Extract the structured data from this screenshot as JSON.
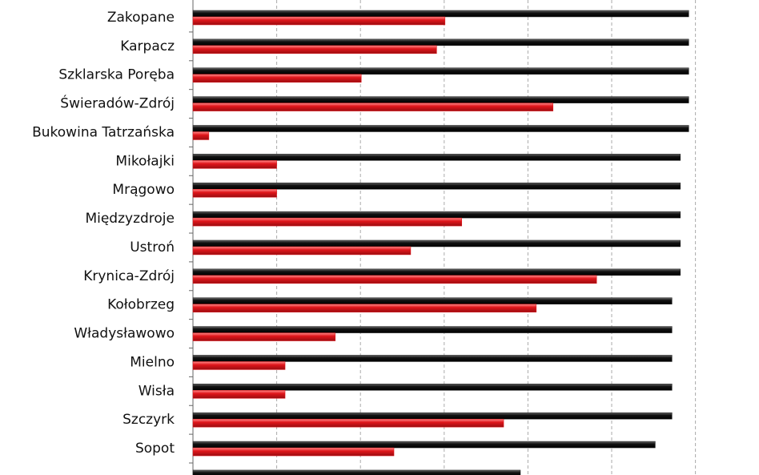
{
  "chart_data": {
    "type": "hbar",
    "categories": [
      "Zakopane",
      "Karpacz",
      "Szklarska Poręba",
      "Świeradów-Zdrój",
      "Bukowina Tatrzańska",
      "Mikołajki",
      "Mrągowo",
      "Międzyzdroje",
      "Ustroń",
      "Krynica-Zdrój",
      "Kołobrzeg",
      "Władysławowo",
      "Mielno",
      "Wisła",
      "Szczyrk",
      "Sopot",
      null
    ],
    "series": [
      {
        "color": "#1a1a1a",
        "values": [
          5.92,
          5.92,
          5.92,
          5.92,
          5.92,
          5.82,
          5.82,
          5.82,
          5.82,
          5.82,
          5.72,
          5.72,
          5.72,
          5.72,
          5.72,
          5.52,
          3.91
        ]
      },
      {
        "color": "#e0161b",
        "values": [
          3.01,
          2.91,
          2.01,
          4.3,
          0.19,
          1.0,
          1.0,
          3.21,
          2.6,
          4.82,
          4.1,
          1.7,
          1.1,
          1.1,
          3.71,
          2.4,
          null
        ]
      }
    ],
    "xlim": [
      0,
      6
    ],
    "gridlines": [
      1,
      2,
      3,
      4,
      5,
      6
    ],
    "grid": true
  }
}
